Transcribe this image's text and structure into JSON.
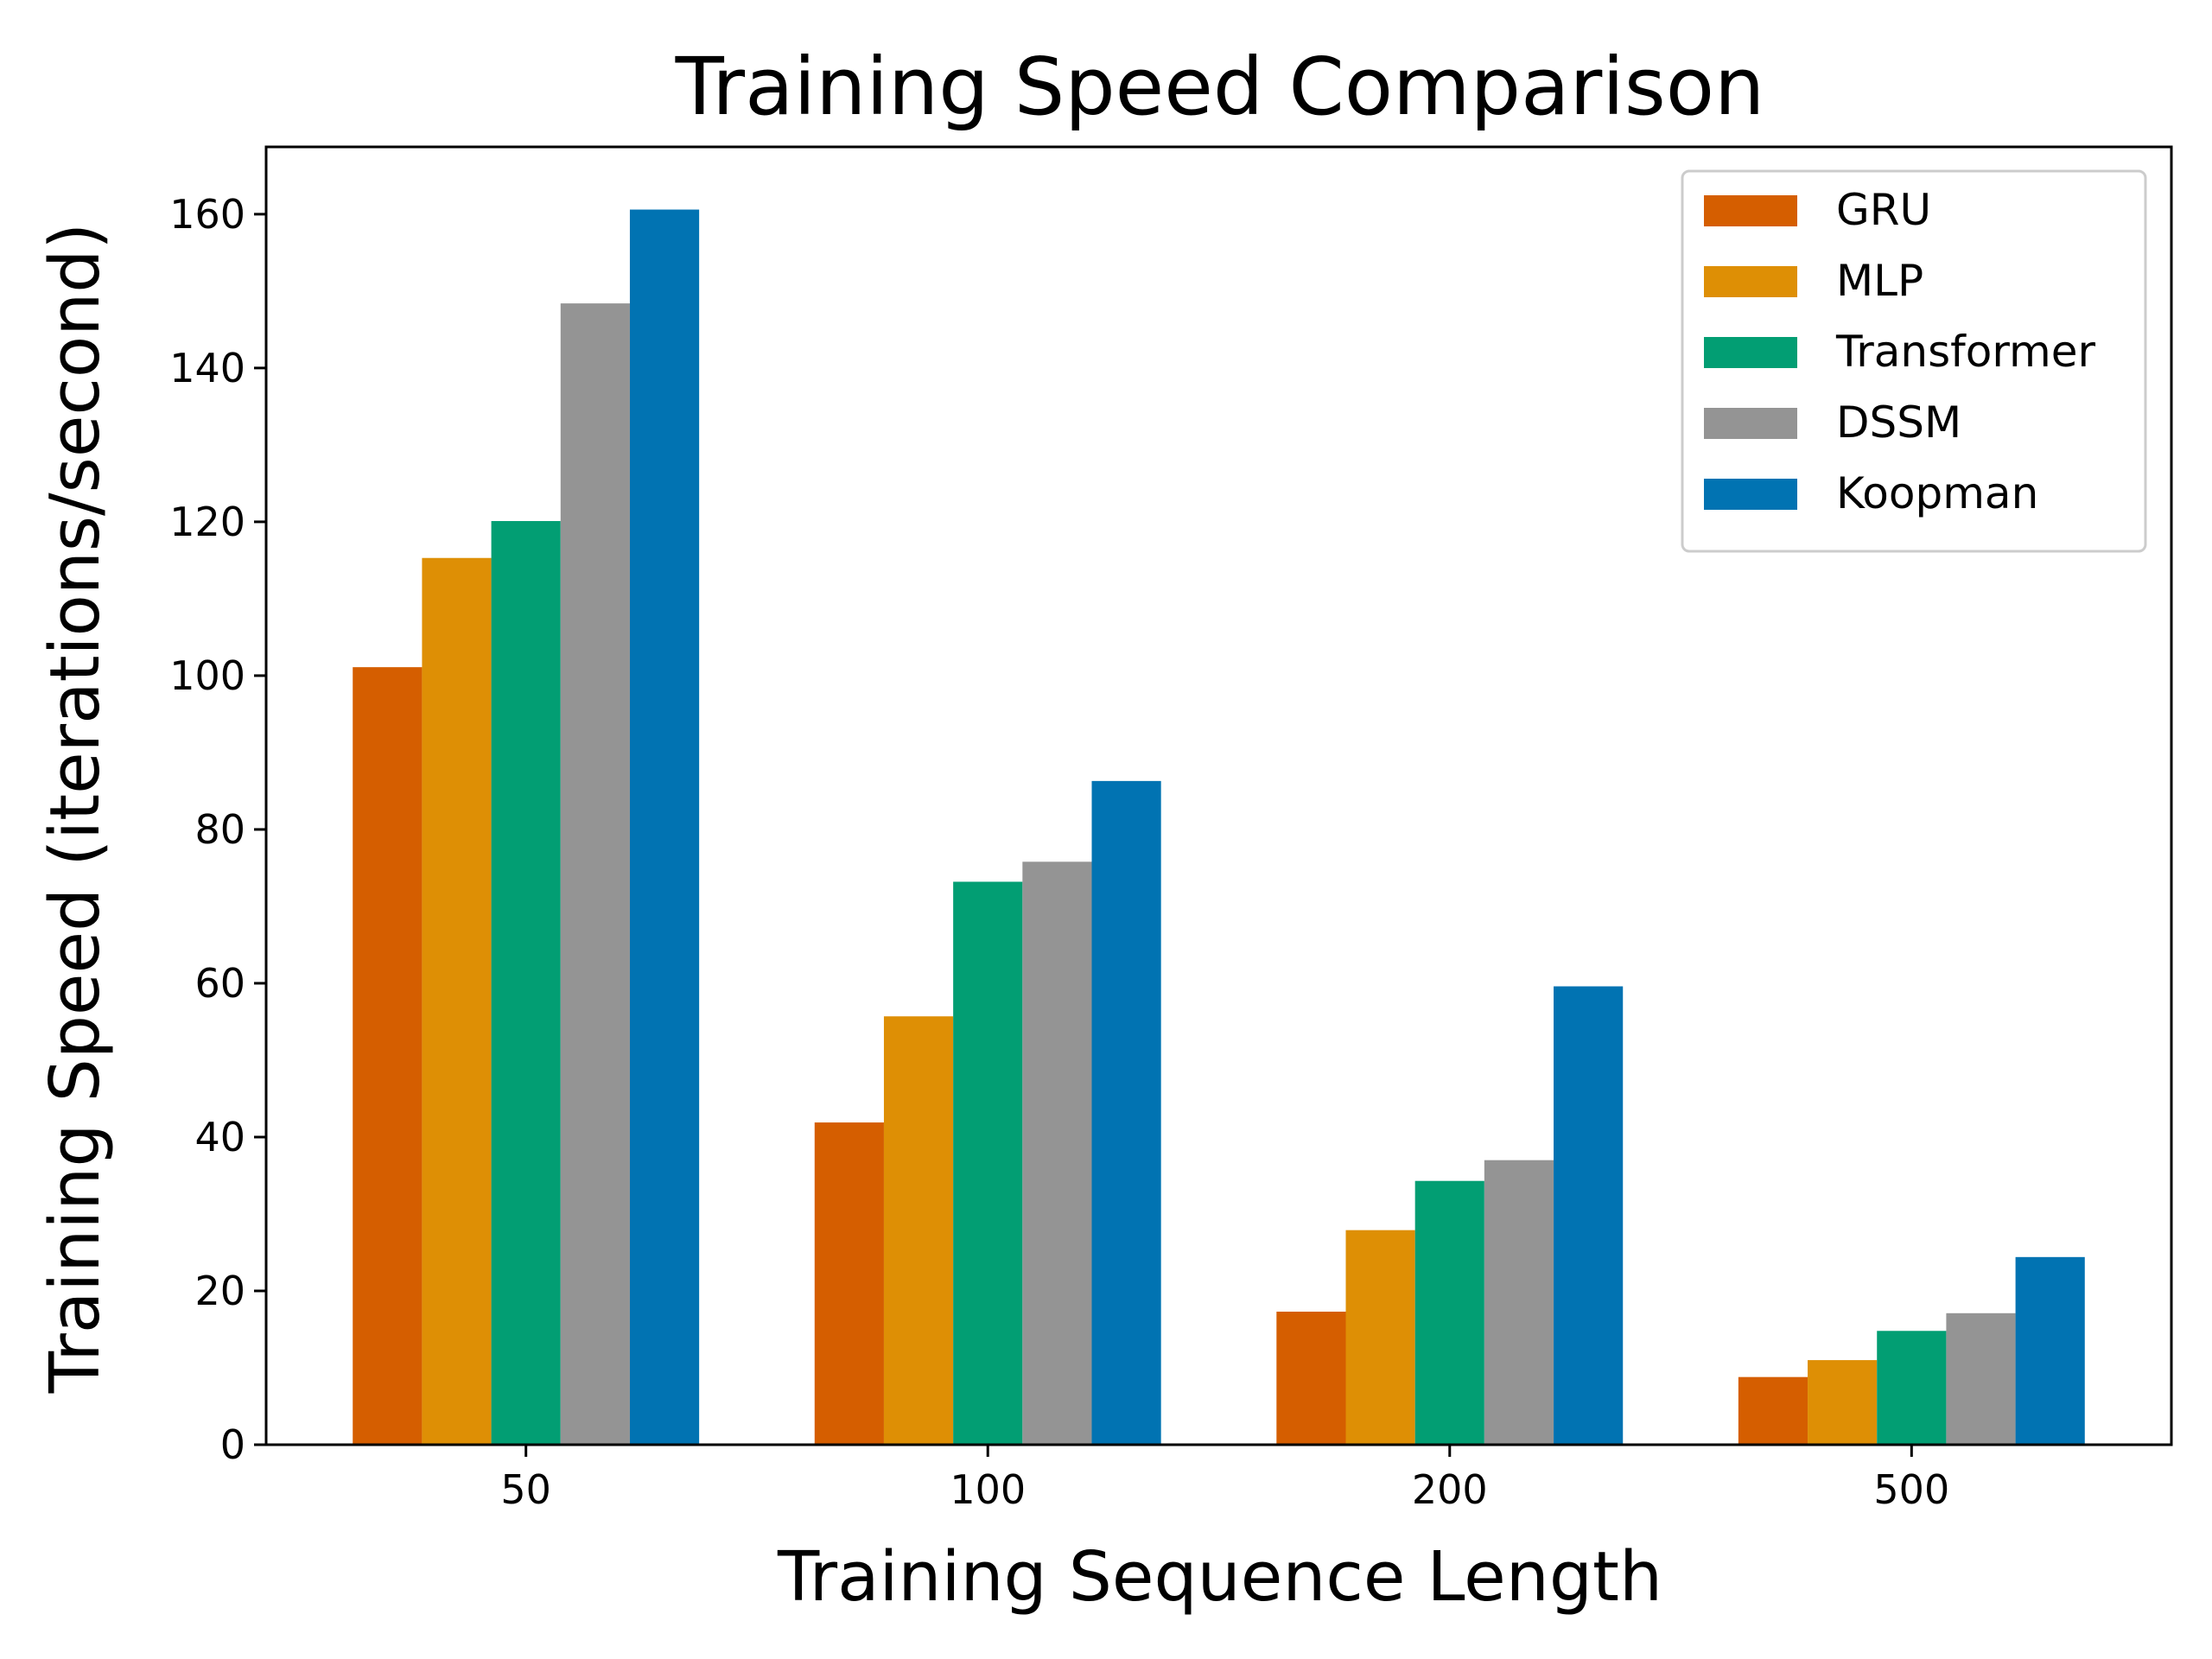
{
  "chart_data": {
    "type": "bar",
    "title": "Training Speed Comparison",
    "xlabel": "Training Sequence Length",
    "ylabel": "Training Speed (iterations/second)",
    "categories": [
      "50",
      "100",
      "200",
      "500"
    ],
    "ylim": [
      0,
      168.75
    ],
    "yticks": [
      0,
      20,
      40,
      60,
      80,
      100,
      120,
      140,
      160
    ],
    "grid": false,
    "legend_position": "top-right",
    "series": [
      {
        "name": "GRU",
        "color": "#D55E00",
        "values": [
          101.1,
          41.9,
          17.3,
          8.8
        ]
      },
      {
        "name": "MLP",
        "color": "#DE8F05",
        "values": [
          115.3,
          55.7,
          27.9,
          11.0
        ]
      },
      {
        "name": "Transformer",
        "color": "#029E73",
        "values": [
          120.1,
          73.2,
          34.3,
          14.8
        ]
      },
      {
        "name": "DSSM",
        "color": "#949494",
        "values": [
          148.4,
          75.8,
          37.0,
          17.1
        ]
      },
      {
        "name": "Koopman",
        "color": "#0173B2",
        "values": [
          160.6,
          86.3,
          59.6,
          24.4
        ]
      }
    ]
  }
}
